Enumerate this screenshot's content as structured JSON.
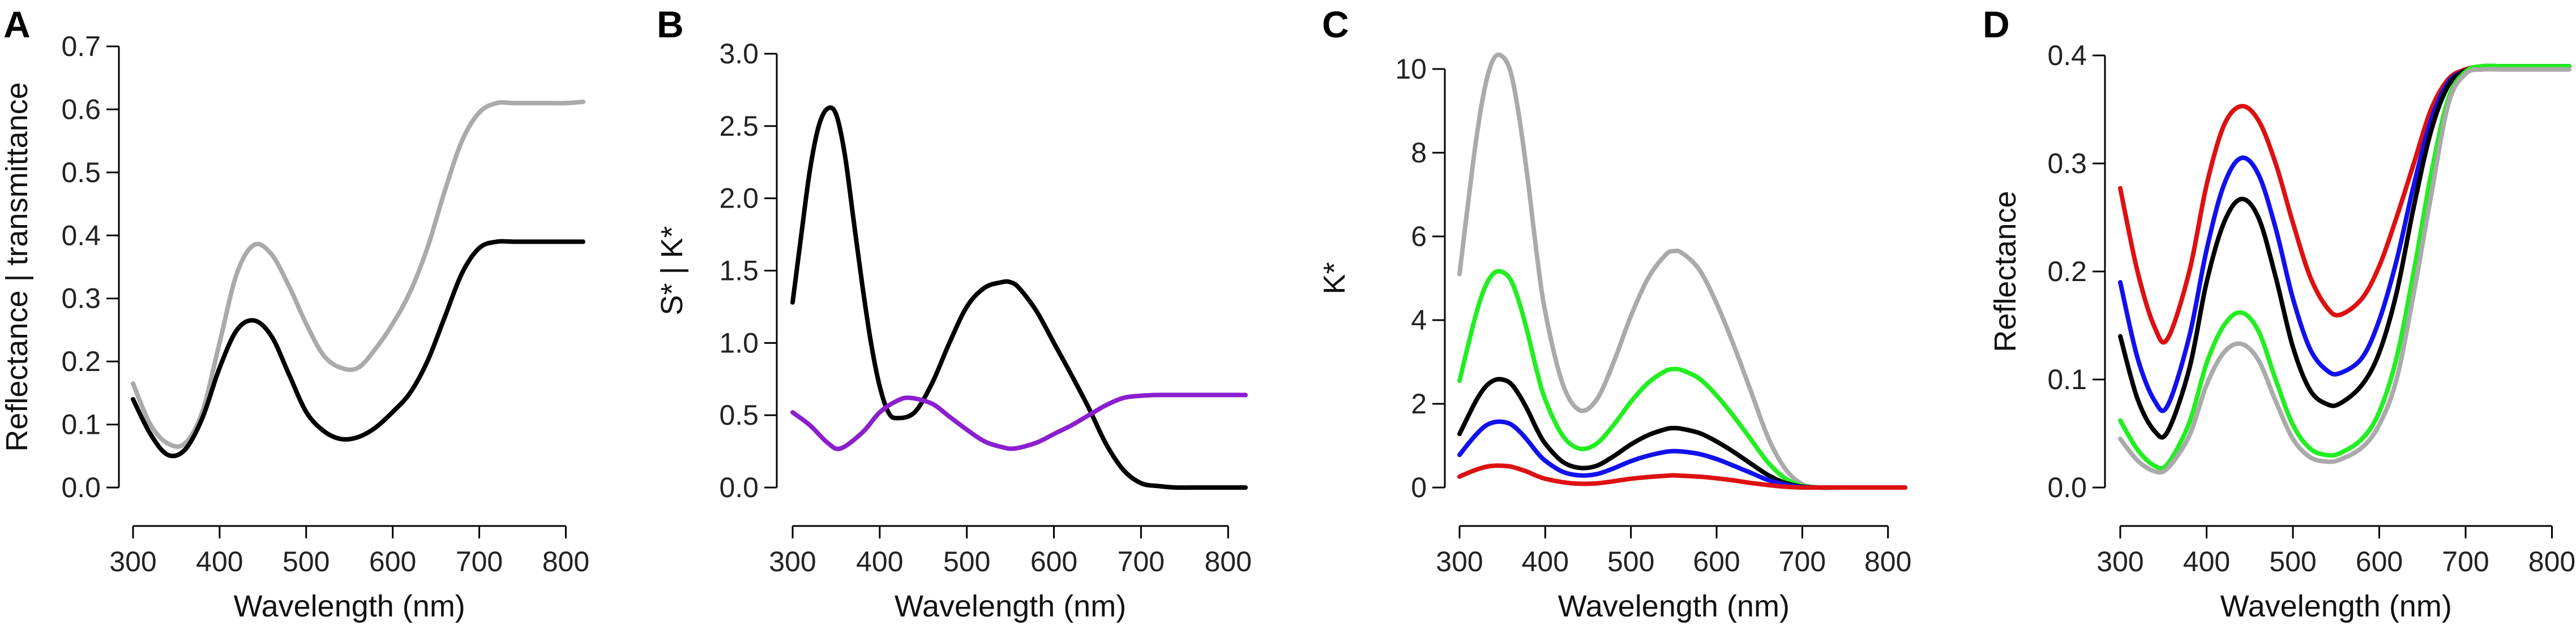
{
  "chart_data": [
    {
      "panel": "A",
      "type": "line",
      "xlabel": "Wavelength (nm)",
      "ylabel": "Reflectance  |  transmittance",
      "xlim": [
        300,
        820
      ],
      "ylim": [
        0,
        0.7
      ],
      "xticks": [
        "300",
        "400",
        "500",
        "600",
        "700",
        "800"
      ],
      "yticks": [
        "0.0",
        "0.1",
        "0.2",
        "0.3",
        "0.4",
        "0.5",
        "0.6",
        "0.7"
      ],
      "grid": false,
      "series": [
        {
          "name": "transmittance",
          "color": "#aaaaaa",
          "x": [
            300,
            320,
            340,
            360,
            380,
            400,
            420,
            440,
            460,
            480,
            500,
            520,
            540,
            560,
            580,
            600,
            620,
            640,
            660,
            680,
            700,
            720,
            740,
            760,
            780,
            800,
            820
          ],
          "y": [
            0.165,
            0.1,
            0.07,
            0.07,
            0.12,
            0.23,
            0.34,
            0.385,
            0.37,
            0.32,
            0.26,
            0.21,
            0.19,
            0.19,
            0.22,
            0.26,
            0.31,
            0.38,
            0.47,
            0.55,
            0.595,
            0.61,
            0.61,
            0.61,
            0.61,
            0.61,
            0.612
          ]
        },
        {
          "name": "reflectance",
          "color": "#000000",
          "x": [
            300,
            320,
            340,
            360,
            380,
            400,
            420,
            440,
            460,
            480,
            500,
            520,
            540,
            560,
            580,
            600,
            620,
            640,
            660,
            680,
            700,
            720,
            740,
            760,
            780,
            800,
            820
          ],
          "y": [
            0.14,
            0.085,
            0.052,
            0.06,
            0.11,
            0.19,
            0.25,
            0.265,
            0.24,
            0.18,
            0.12,
            0.09,
            0.077,
            0.08,
            0.095,
            0.12,
            0.15,
            0.2,
            0.27,
            0.34,
            0.38,
            0.39,
            0.39,
            0.39,
            0.39,
            0.39,
            0.39
          ]
        }
      ]
    },
    {
      "panel": "B",
      "type": "line",
      "xlabel": "Wavelength (nm)",
      "ylabel": "S*  |  K*",
      "xlim": [
        300,
        820
      ],
      "ylim": [
        0,
        3.0
      ],
      "xticks": [
        "300",
        "400",
        "500",
        "600",
        "700",
        "800"
      ],
      "yticks": [
        "0.0",
        "0.5",
        "1.0",
        "1.5",
        "2.0",
        "2.5",
        "3.0"
      ],
      "grid": false,
      "series": [
        {
          "name": "K*",
          "color": "#000000",
          "x": [
            300,
            310,
            320,
            330,
            340,
            350,
            360,
            370,
            380,
            390,
            400,
            410,
            420,
            440,
            460,
            480,
            500,
            520,
            540,
            550,
            560,
            580,
            600,
            620,
            640,
            660,
            680,
            700,
            720,
            740,
            760,
            780,
            800,
            820
          ],
          "y": [
            1.28,
            1.75,
            2.2,
            2.5,
            2.62,
            2.58,
            2.3,
            1.85,
            1.4,
            1.0,
            0.7,
            0.52,
            0.48,
            0.52,
            0.72,
            1.0,
            1.25,
            1.38,
            1.42,
            1.42,
            1.38,
            1.22,
            1.0,
            0.78,
            0.55,
            0.3,
            0.12,
            0.03,
            0.01,
            0.0,
            0.0,
            0.0,
            0.0,
            0.0
          ]
        },
        {
          "name": "S*",
          "color": "#8b1ecf",
          "x": [
            300,
            320,
            340,
            355,
            380,
            400,
            420,
            435,
            460,
            480,
            500,
            520,
            540,
            555,
            580,
            600,
            620,
            640,
            660,
            680,
            700,
            720,
            740,
            760,
            780,
            800,
            820
          ],
          "y": [
            0.52,
            0.43,
            0.31,
            0.27,
            0.38,
            0.52,
            0.6,
            0.62,
            0.58,
            0.49,
            0.4,
            0.32,
            0.28,
            0.27,
            0.31,
            0.37,
            0.43,
            0.5,
            0.57,
            0.62,
            0.635,
            0.64,
            0.64,
            0.64,
            0.64,
            0.64,
            0.64
          ]
        }
      ]
    },
    {
      "panel": "C",
      "type": "line",
      "xlabel": "Wavelength (nm)",
      "ylabel": "K*",
      "xlim": [
        300,
        820
      ],
      "ylim": [
        0,
        10.5
      ],
      "xticks": [
        "300",
        "400",
        "500",
        "600",
        "700",
        "800"
      ],
      "yticks": [
        "0",
        "2",
        "4",
        "6",
        "8",
        "10"
      ],
      "grid": false,
      "series": [
        {
          "name": "gray",
          "color": "#aaaaaa",
          "x": [
            300,
            310,
            320,
            330,
            340,
            350,
            360,
            370,
            380,
            390,
            400,
            420,
            440,
            460,
            480,
            500,
            520,
            540,
            550,
            560,
            580,
            600,
            620,
            640,
            660,
            680,
            700,
            720,
            740,
            760,
            780,
            800,
            820
          ],
          "y": [
            5.1,
            6.8,
            8.4,
            9.6,
            10.25,
            10.3,
            9.9,
            8.8,
            7.3,
            5.6,
            4.2,
            2.5,
            1.85,
            2.1,
            3.0,
            4.1,
            5.0,
            5.55,
            5.65,
            5.6,
            5.2,
            4.4,
            3.4,
            2.3,
            1.2,
            0.45,
            0.08,
            0.0,
            0.0,
            0.0,
            0.0,
            0.0,
            0.0
          ]
        },
        {
          "name": "green",
          "color": "#22ee22",
          "x": [
            300,
            310,
            320,
            330,
            340,
            350,
            360,
            370,
            380,
            390,
            400,
            420,
            440,
            460,
            480,
            500,
            520,
            540,
            550,
            560,
            580,
            600,
            620,
            640,
            660,
            680,
            700,
            720,
            740,
            760,
            780,
            800,
            820
          ],
          "y": [
            2.55,
            3.4,
            4.2,
            4.8,
            5.12,
            5.15,
            4.95,
            4.4,
            3.65,
            2.8,
            2.1,
            1.25,
            0.93,
            1.05,
            1.5,
            2.05,
            2.5,
            2.78,
            2.83,
            2.8,
            2.6,
            2.2,
            1.7,
            1.15,
            0.6,
            0.22,
            0.04,
            0.0,
            0.0,
            0.0,
            0.0,
            0.0,
            0.0
          ]
        },
        {
          "name": "black",
          "color": "#000000",
          "x": [
            300,
            310,
            320,
            330,
            340,
            350,
            360,
            370,
            380,
            390,
            400,
            420,
            440,
            460,
            480,
            500,
            520,
            540,
            550,
            560,
            580,
            600,
            620,
            640,
            660,
            680,
            700,
            720,
            740,
            760,
            780,
            800,
            820
          ],
          "y": [
            1.28,
            1.7,
            2.1,
            2.4,
            2.56,
            2.58,
            2.48,
            2.2,
            1.83,
            1.4,
            1.05,
            0.62,
            0.47,
            0.52,
            0.75,
            1.03,
            1.25,
            1.39,
            1.42,
            1.4,
            1.3,
            1.1,
            0.85,
            0.57,
            0.3,
            0.11,
            0.02,
            0.0,
            0.0,
            0.0,
            0.0,
            0.0,
            0.0
          ]
        },
        {
          "name": "blue",
          "color": "#1111ee",
          "x": [
            300,
            310,
            320,
            330,
            340,
            350,
            360,
            370,
            380,
            390,
            400,
            420,
            440,
            460,
            480,
            500,
            520,
            540,
            550,
            560,
            580,
            600,
            620,
            640,
            660,
            680,
            700,
            720,
            740,
            760,
            780,
            800,
            820
          ],
          "y": [
            0.78,
            1.04,
            1.28,
            1.47,
            1.56,
            1.57,
            1.51,
            1.34,
            1.11,
            0.85,
            0.64,
            0.38,
            0.29,
            0.32,
            0.46,
            0.63,
            0.76,
            0.85,
            0.87,
            0.86,
            0.8,
            0.68,
            0.52,
            0.35,
            0.18,
            0.07,
            0.01,
            0.0,
            0.0,
            0.0,
            0.0,
            0.0,
            0.0
          ]
        },
        {
          "name": "red",
          "color": "#dd1111",
          "x": [
            300,
            310,
            320,
            330,
            340,
            350,
            360,
            370,
            380,
            390,
            400,
            420,
            440,
            460,
            480,
            500,
            520,
            540,
            550,
            560,
            580,
            600,
            620,
            640,
            660,
            680,
            700,
            720,
            740,
            760,
            780,
            800,
            820
          ],
          "y": [
            0.26,
            0.35,
            0.43,
            0.49,
            0.52,
            0.52,
            0.5,
            0.44,
            0.37,
            0.28,
            0.21,
            0.13,
            0.09,
            0.1,
            0.15,
            0.21,
            0.25,
            0.28,
            0.29,
            0.28,
            0.26,
            0.22,
            0.17,
            0.11,
            0.06,
            0.02,
            0.0,
            0.0,
            0.0,
            0.0,
            0.0,
            0.0,
            0.0
          ]
        }
      ]
    },
    {
      "panel": "D",
      "type": "line",
      "xlabel": "Wavelength (nm)",
      "ylabel": "Reflectance",
      "xlim": [
        300,
        820
      ],
      "ylim": [
        0,
        0.4
      ],
      "xticks": [
        "300",
        "400",
        "500",
        "600",
        "700",
        "800"
      ],
      "yticks": [
        "0.0",
        "0.1",
        "0.2",
        "0.3",
        "0.4"
      ],
      "grid": false,
      "series": [
        {
          "name": "red",
          "color": "#dd1111",
          "x": [
            300,
            320,
            340,
            355,
            380,
            400,
            420,
            440,
            460,
            480,
            500,
            520,
            540,
            555,
            580,
            600,
            620,
            640,
            660,
            680,
            700,
            720,
            740,
            760,
            780,
            800,
            820
          ],
          "y": [
            0.277,
            0.2,
            0.148,
            0.138,
            0.2,
            0.28,
            0.335,
            0.353,
            0.34,
            0.3,
            0.245,
            0.195,
            0.166,
            0.16,
            0.175,
            0.205,
            0.25,
            0.3,
            0.35,
            0.378,
            0.387,
            0.39,
            0.39,
            0.39,
            0.39,
            0.39,
            0.39
          ]
        },
        {
          "name": "blue",
          "color": "#1111ee",
          "x": [
            300,
            320,
            340,
            355,
            380,
            400,
            420,
            440,
            460,
            480,
            500,
            520,
            540,
            555,
            580,
            600,
            620,
            640,
            660,
            680,
            700,
            720,
            740,
            760,
            780,
            800,
            820
          ],
          "y": [
            0.19,
            0.12,
            0.08,
            0.076,
            0.14,
            0.22,
            0.28,
            0.305,
            0.29,
            0.24,
            0.175,
            0.128,
            0.108,
            0.106,
            0.12,
            0.155,
            0.21,
            0.28,
            0.34,
            0.375,
            0.386,
            0.39,
            0.39,
            0.39,
            0.39,
            0.39,
            0.39
          ]
        },
        {
          "name": "black",
          "color": "#000000",
          "x": [
            300,
            320,
            340,
            355,
            380,
            400,
            420,
            440,
            460,
            480,
            500,
            520,
            540,
            555,
            580,
            600,
            620,
            640,
            660,
            680,
            700,
            720,
            740,
            760,
            780,
            800,
            820
          ],
          "y": [
            0.14,
            0.082,
            0.052,
            0.052,
            0.11,
            0.19,
            0.245,
            0.267,
            0.25,
            0.195,
            0.13,
            0.09,
            0.077,
            0.078,
            0.095,
            0.125,
            0.18,
            0.26,
            0.33,
            0.372,
            0.386,
            0.39,
            0.39,
            0.39,
            0.39,
            0.39,
            0.39
          ]
        },
        {
          "name": "green",
          "color": "#22ee22",
          "x": [
            300,
            320,
            340,
            355,
            380,
            400,
            420,
            440,
            460,
            480,
            500,
            520,
            540,
            555,
            580,
            600,
            620,
            640,
            660,
            680,
            700,
            720,
            740,
            760,
            780,
            800,
            820
          ],
          "y": [
            0.062,
            0.035,
            0.02,
            0.022,
            0.06,
            0.115,
            0.15,
            0.162,
            0.145,
            0.1,
            0.058,
            0.036,
            0.03,
            0.032,
            0.045,
            0.07,
            0.12,
            0.2,
            0.29,
            0.36,
            0.385,
            0.39,
            0.39,
            0.39,
            0.39,
            0.39,
            0.39
          ]
        },
        {
          "name": "gray",
          "color": "#aaaaaa",
          "x": [
            300,
            320,
            340,
            355,
            380,
            400,
            420,
            440,
            460,
            480,
            500,
            520,
            540,
            555,
            580,
            600,
            620,
            640,
            660,
            680,
            700,
            720,
            740,
            760,
            780,
            800,
            820
          ],
          "y": [
            0.045,
            0.025,
            0.015,
            0.018,
            0.048,
            0.095,
            0.125,
            0.133,
            0.118,
            0.08,
            0.045,
            0.028,
            0.024,
            0.026,
            0.037,
            0.058,
            0.1,
            0.18,
            0.27,
            0.355,
            0.383,
            0.387,
            0.387,
            0.387,
            0.387,
            0.387,
            0.387
          ]
        }
      ]
    }
  ]
}
